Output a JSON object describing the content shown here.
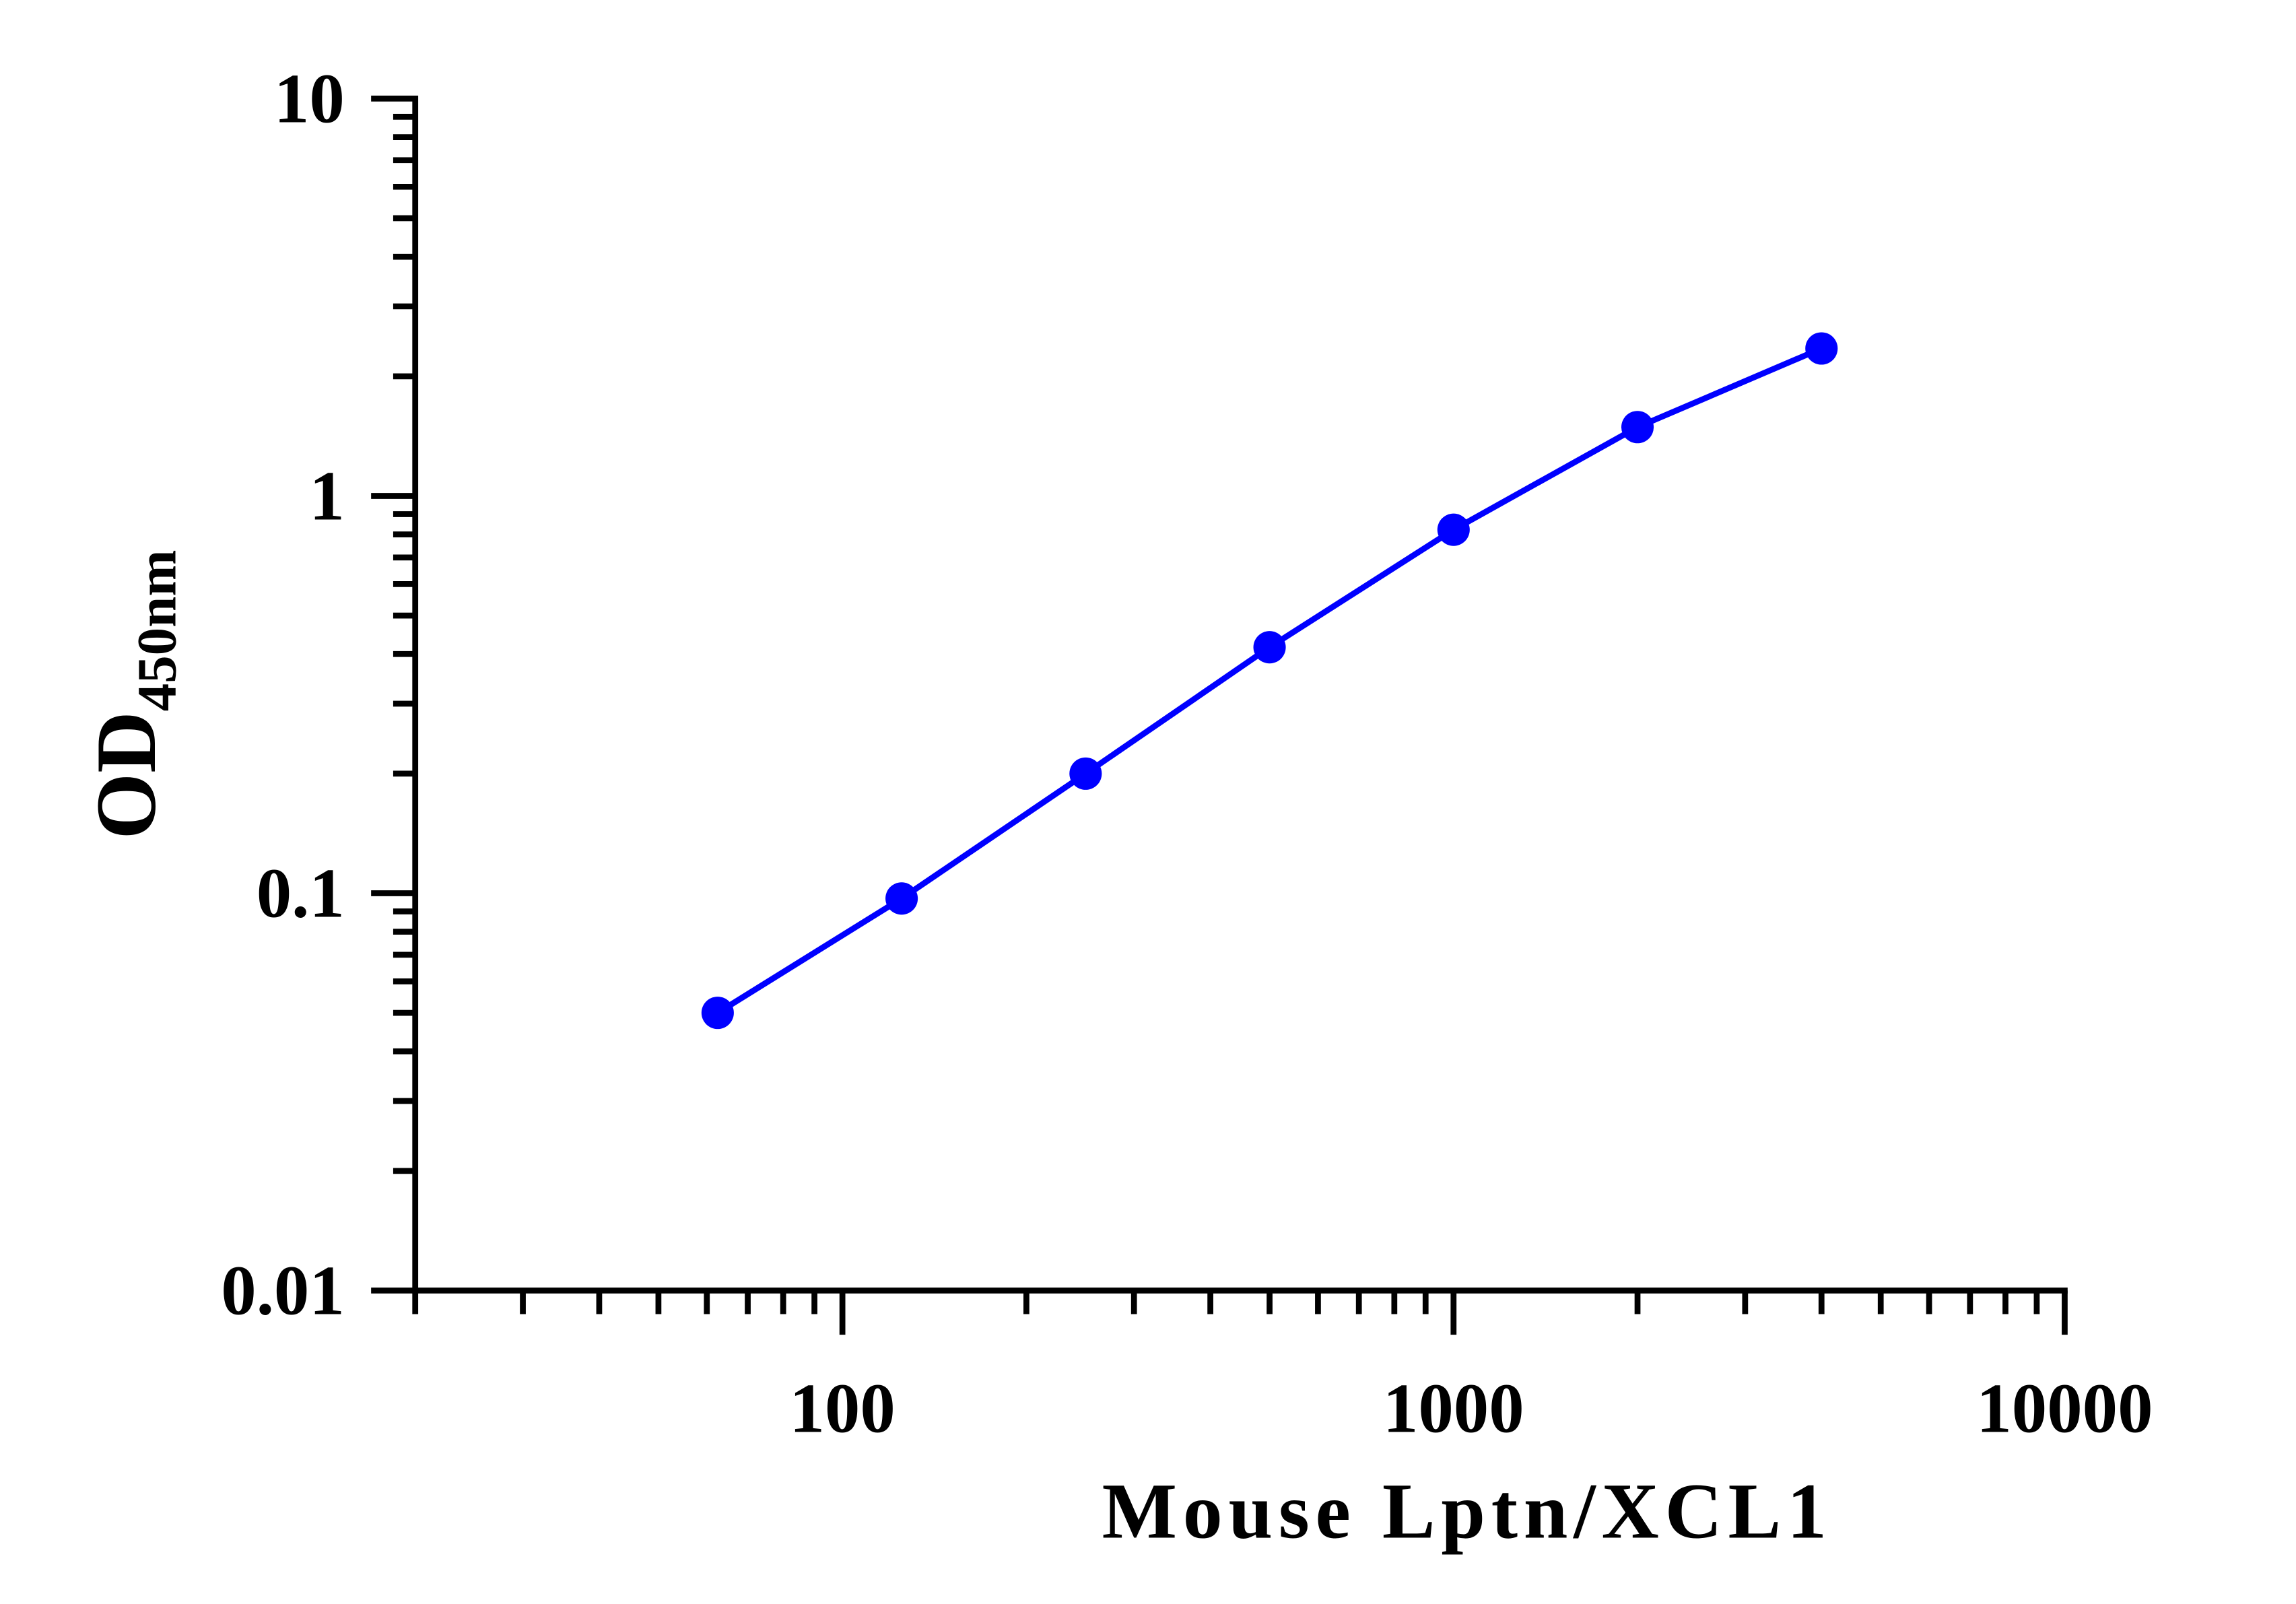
{
  "chart_data": {
    "type": "line",
    "xlabel": "Mouse Lptn/XCL1",
    "ylabel": "OD",
    "ylabel_subscript": "450nm",
    "x": [
      62.5,
      125,
      250,
      500,
      1000,
      2000,
      4000
    ],
    "series": [
      {
        "color": "#0000ff",
        "values": [
          0.05,
          0.097,
          0.2,
          0.416,
          0.822,
          1.49,
          2.35
        ]
      }
    ],
    "xscale": "log",
    "yscale": "log",
    "xlim": [
      20,
      10000
    ],
    "ylim": [
      0.01,
      10
    ],
    "xticks": [
      100,
      1000,
      10000
    ],
    "yticks": [
      0.01,
      0.1,
      1,
      10
    ],
    "xminorticks": [
      20,
      30,
      40,
      50,
      60,
      70,
      80,
      90,
      200,
      300,
      400,
      500,
      600,
      700,
      800,
      900,
      2000,
      3000,
      4000,
      5000,
      6000,
      7000,
      8000,
      9000
    ],
    "yminorticks": [
      0.02,
      0.03,
      0.04,
      0.05,
      0.06,
      0.07,
      0.08,
      0.09,
      0.2,
      0.3,
      0.4,
      0.5,
      0.6,
      0.7,
      0.8,
      0.9,
      2,
      3,
      4,
      5,
      6,
      7,
      8,
      9
    ],
    "grid": false
  }
}
